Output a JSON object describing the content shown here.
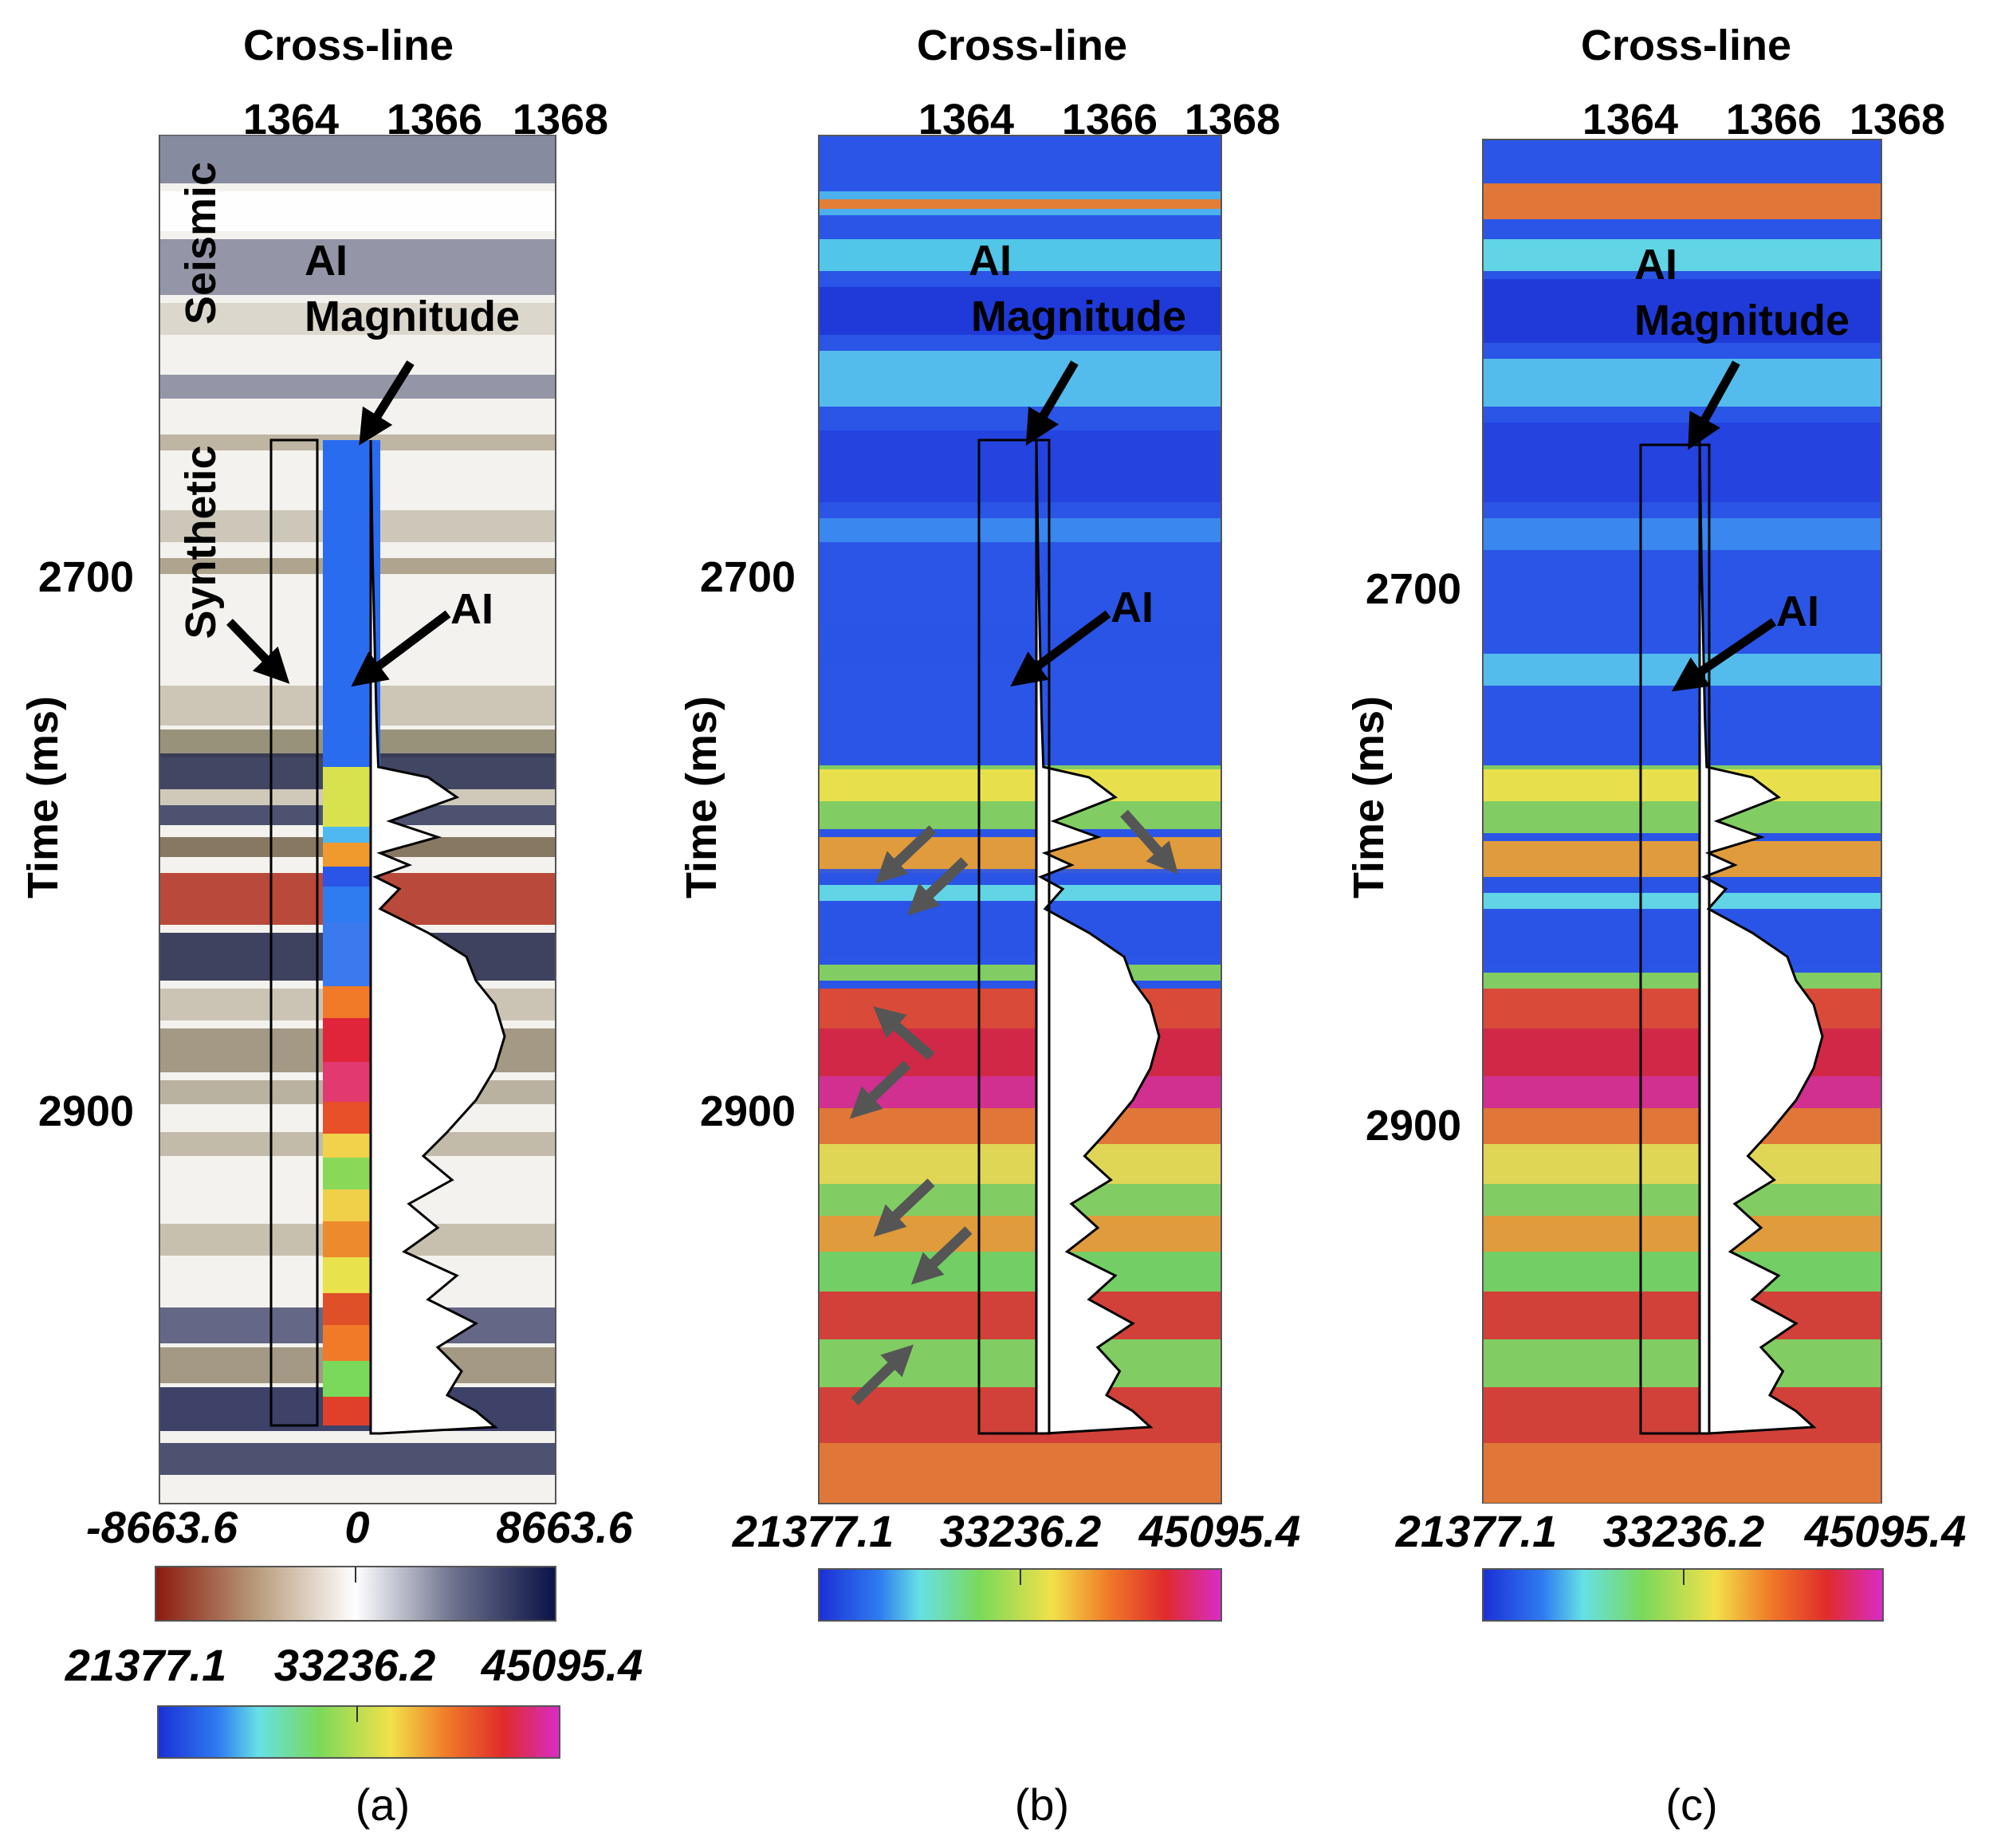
{
  "axis": {
    "cross_line_title": "Cross-line",
    "cross_line_ticks": [
      "1364",
      "1366",
      "1368"
    ],
    "time_title": "Time (ms)",
    "time_ticks": [
      "2700",
      "2900"
    ]
  },
  "annotations": {
    "seismic": "Seismic",
    "synthetic": "Synthetic",
    "ai_line1": "AI",
    "ai_line2": "Magnitude",
    "ai": "AI"
  },
  "colorbars": {
    "seismic": {
      "min": "-8663.6",
      "mid": "0",
      "max": "8663.6",
      "colors": [
        "#8b1a0e",
        "#d8cfc0",
        "#ffffff",
        "#5b5f7a",
        "#0b1246"
      ]
    },
    "ai": {
      "min": "21377.1",
      "mid": "33236.2",
      "max": "45095.4",
      "colors": [
        "#1b2fd6",
        "#2f7bf0",
        "#66e0e6",
        "#7ad95a",
        "#f1e14a",
        "#f07a28",
        "#e02b2b",
        "#d92bc9"
      ]
    }
  },
  "captions": [
    "(a)",
    "(b)",
    "(c)"
  ],
  "colors": {
    "frame": "#000000",
    "arrow": "#000000",
    "gray_arrow": "#555555",
    "trace_fill": "#ffffff"
  }
}
